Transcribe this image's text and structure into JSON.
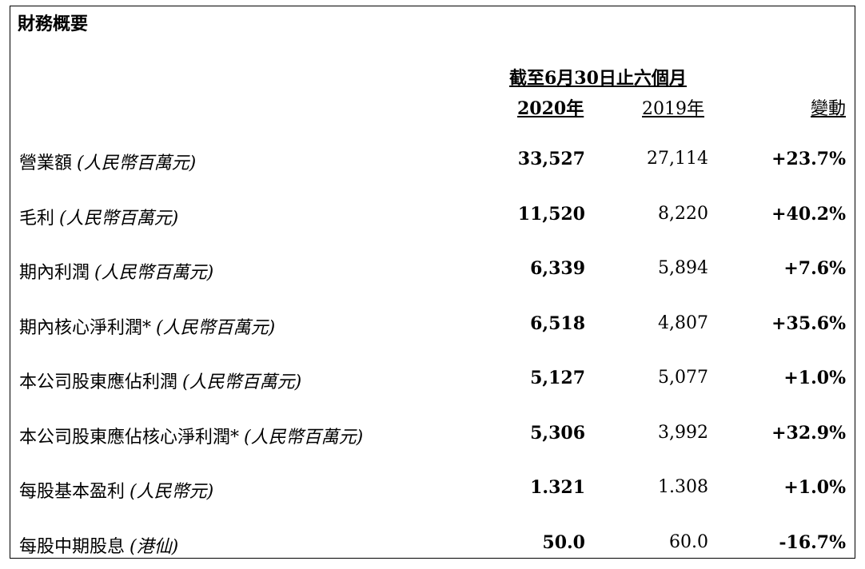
{
  "title": "財務概要",
  "period_header": "截至6月30日止六個月",
  "columns": {
    "y2020": "2020年",
    "y2019": "2019年",
    "change": "變動"
  },
  "rows": [
    {
      "label": "營業額",
      "unit": "(人民幣百萬元)",
      "v2020": "33,527",
      "v2019": "27,114",
      "change": "+23.7%"
    },
    {
      "label": "毛利",
      "unit": "(人民幣百萬元)",
      "v2020": "11,520",
      "v2019": "8,220",
      "change": "+40.2%"
    },
    {
      "label": "期內利潤",
      "unit": "(人民幣百萬元)",
      "v2020": "6,339",
      "v2019": "5,894",
      "change": "+7.6%"
    },
    {
      "label": "期內核心淨利潤*",
      "unit": "(人民幣百萬元)",
      "v2020": "6,518",
      "v2019": "4,807",
      "change": "+35.6%"
    },
    {
      "label": "本公司股東應佔利潤",
      "unit": "(人民幣百萬元)",
      "v2020": "5,127",
      "v2019": "5,077",
      "change": "+1.0%"
    },
    {
      "label": "本公司股東應佔核心淨利潤*",
      "unit": "(人民幣百萬元)",
      "v2020": "5,306",
      "v2019": "3,992",
      "change": "+32.9%"
    },
    {
      "label": "每股基本盈利",
      "unit": "(人民幣元)",
      "v2020": "1.321",
      "v2019": "1.308",
      "change": "+1.0%"
    },
    {
      "label": "每股中期股息",
      "unit": "(港仙)",
      "v2020": "50.0",
      "v2019": "60.0",
      "change": "-16.7%"
    }
  ]
}
